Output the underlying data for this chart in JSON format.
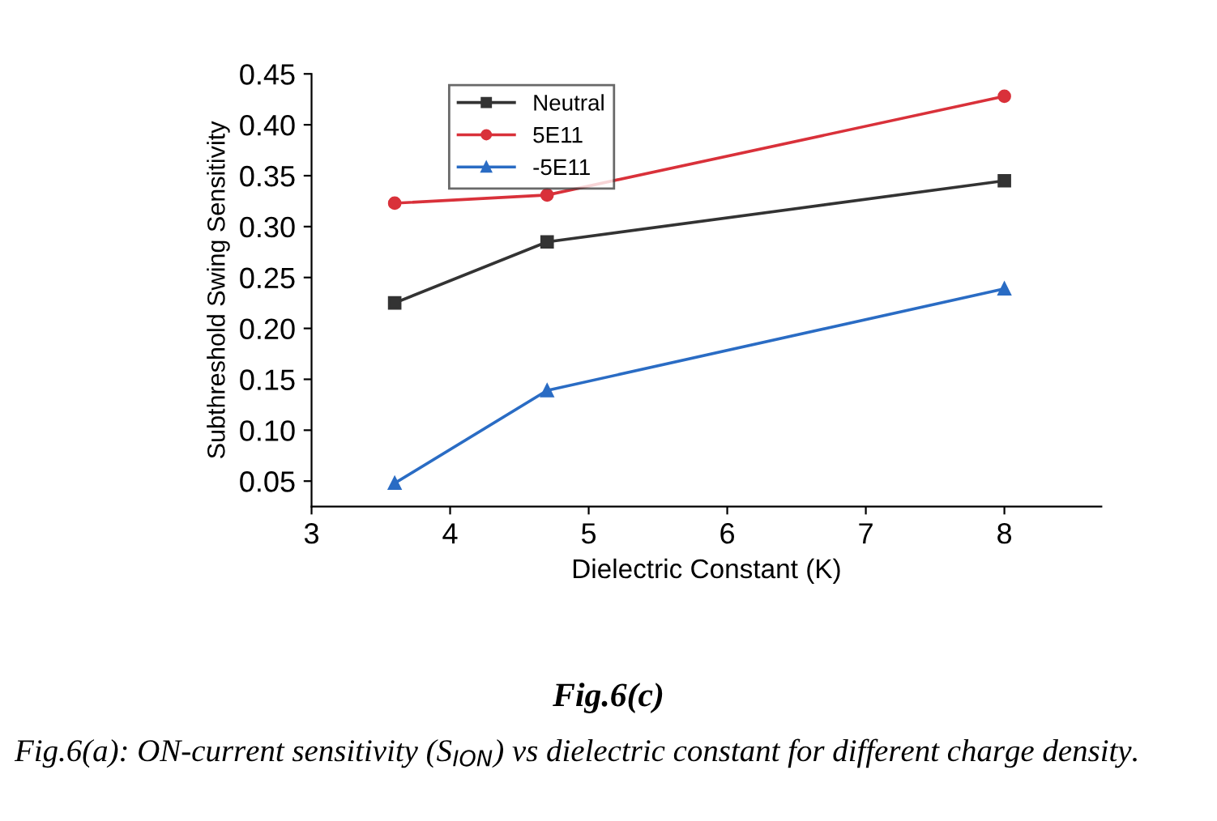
{
  "chart_data": {
    "type": "line",
    "title": "Fig.6(c)",
    "xlabel": "Dielectric Constant (K)",
    "ylabel": "Subthreshold Swing Sensitivity",
    "x": [
      3.6,
      4.7,
      8
    ],
    "series": [
      {
        "name": "Neutral",
        "color": "#333333",
        "marker": "square",
        "values": [
          0.225,
          0.285,
          0.345
        ]
      },
      {
        "name": "5E11",
        "color": "#d9313a",
        "marker": "circle",
        "values": [
          0.323,
          0.331,
          0.428
        ]
      },
      {
        "name": "-5E11",
        "color": "#2a6cc4",
        "marker": "triangle",
        "values": [
          0.048,
          0.139,
          0.239
        ]
      }
    ],
    "xlim": [
      3,
      8.7
    ],
    "xticks": [
      3,
      4,
      5,
      6,
      7,
      8
    ],
    "ylim": [
      0.025,
      0.45
    ],
    "yticks": [
      0.05,
      {
        "value": 0.1,
        "label": "0.10"
      },
      0.15,
      {
        "value": 0.2,
        "label": "0.20"
      },
      0.25,
      {
        "value": 0.3,
        "label": "0.30"
      },
      0.35,
      {
        "value": 0.4,
        "label": "0.40"
      },
      0.45
    ],
    "grid": false,
    "legend": "top left",
    "line_style": "solid",
    "annotations": [
      "Fig.6(a): ON-current sensitivity (S$_{ION}$) vs dielectric constant for different charge density."
    ]
  }
}
